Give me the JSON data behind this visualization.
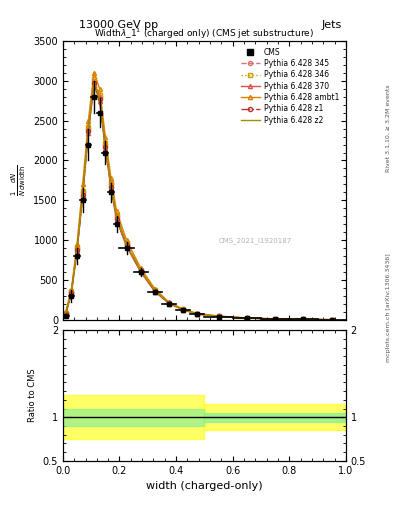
{
  "title_top": "13000 GeV pp",
  "title_right": "Jets",
  "plot_title": "Widthλ_1¹ (charged only) (CMS jet substructure)",
  "xlabel": "width (charged-only)",
  "ylabel_main": "1/N dN/d(width)",
  "ylabel_ratio": "Ratio to CMS",
  "watermark": "CMS_2021_I1920187",
  "right_label_top": "Rivet 3.1.10, ≥ 3.2M events",
  "right_label_bottom": "mcplots.cern.ch [arXiv:1306.3436]",
  "x_bins": [
    0.0,
    0.02,
    0.04,
    0.06,
    0.08,
    0.1,
    0.12,
    0.14,
    0.16,
    0.18,
    0.2,
    0.25,
    0.3,
    0.35,
    0.4,
    0.45,
    0.5,
    0.6,
    0.7,
    0.8,
    0.9,
    1.0
  ],
  "cms_data_y": [
    50,
    300,
    800,
    1500,
    2200,
    2800,
    2600,
    2100,
    1600,
    1200,
    900,
    600,
    350,
    200,
    120,
    70,
    40,
    20,
    10,
    5,
    2
  ],
  "cms_data_yerr": [
    20,
    80,
    100,
    150,
    200,
    200,
    180,
    150,
    120,
    100,
    80,
    50,
    30,
    20,
    15,
    10,
    8,
    5,
    3,
    2,
    1
  ],
  "pythia_345_y": [
    80,
    350,
    900,
    1600,
    2400,
    3000,
    2800,
    2200,
    1700,
    1300,
    950,
    620,
    370,
    210,
    130,
    75,
    45,
    22,
    11,
    5,
    2
  ],
  "pythia_346_y": [
    90,
    360,
    920,
    1620,
    2420,
    3020,
    2820,
    2220,
    1720,
    1320,
    960,
    630,
    375,
    215,
    133,
    77,
    46,
    23,
    11,
    5,
    2
  ],
  "pythia_370_y": [
    70,
    330,
    860,
    1550,
    2350,
    2950,
    2750,
    2150,
    1650,
    1250,
    920,
    600,
    355,
    205,
    125,
    72,
    43,
    21,
    10,
    5,
    2
  ],
  "pythia_ambt1_y": [
    100,
    380,
    950,
    1700,
    2500,
    3100,
    2900,
    2300,
    1780,
    1360,
    1000,
    650,
    390,
    220,
    135,
    80,
    48,
    24,
    12,
    6,
    2
  ],
  "pythia_z1_y": [
    75,
    340,
    880,
    1570,
    2370,
    2970,
    2770,
    2170,
    1670,
    1270,
    935,
    610,
    360,
    207,
    127,
    73,
    44,
    22,
    11,
    5,
    2
  ],
  "pythia_z2_y": [
    85,
    345,
    890,
    1580,
    2380,
    2980,
    2780,
    2180,
    1680,
    1280,
    940,
    615,
    365,
    210,
    128,
    74,
    44,
    22,
    11,
    5,
    2
  ],
  "color_345": "#e07070",
  "color_346": "#c8a000",
  "color_370": "#e05050",
  "color_ambt1": "#e08000",
  "color_z1": "#c03030",
  "color_z2": "#a09000",
  "color_cms": "#000000",
  "ylim_main": [
    0,
    3500
  ],
  "ylim_ratio": [
    0.5,
    2.0
  ],
  "xlim": [
    0.0,
    1.0
  ],
  "ratio_green_band": [
    0.95,
    1.05
  ],
  "ratio_yellow_band_inner": [
    0.85,
    1.15
  ],
  "ratio_yellow_band_outer": [
    0.75,
    1.25
  ]
}
